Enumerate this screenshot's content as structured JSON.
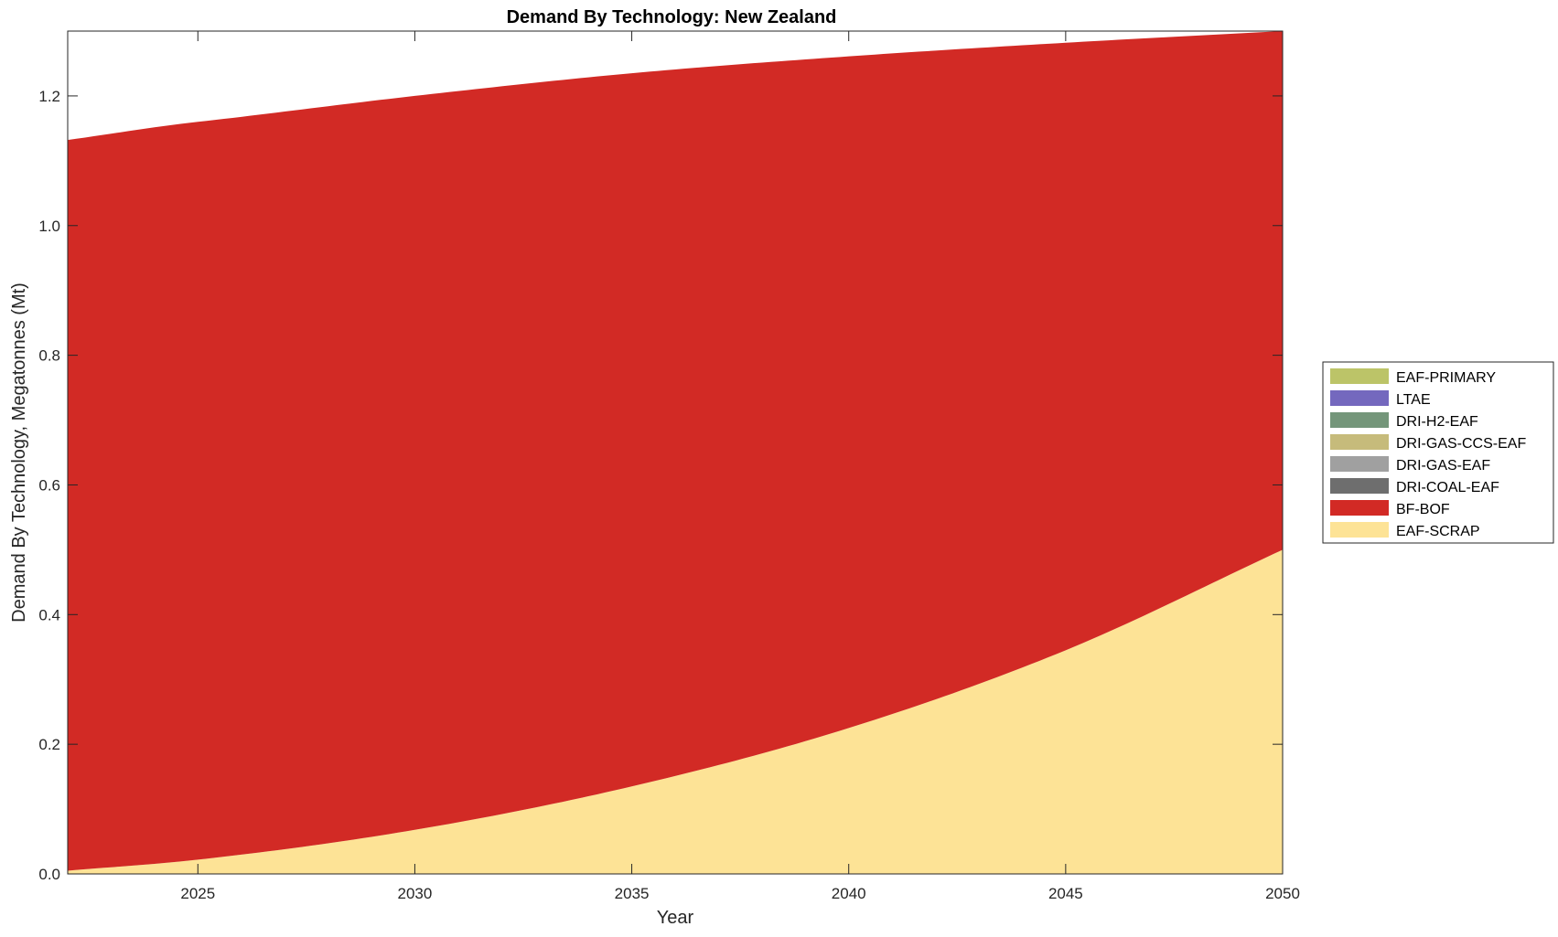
{
  "chart_data": {
    "type": "area",
    "stacked": true,
    "title": "Demand By Technology: New Zealand",
    "xlabel": "Year",
    "ylabel": "Demand By Technology, Megatonnes (Mt)",
    "xlim": [
      2022,
      2050
    ],
    "ylim": [
      0,
      1.3
    ],
    "xticks": [
      2025,
      2030,
      2035,
      2040,
      2045,
      2050
    ],
    "xtick_labels": [
      "2025",
      "2030",
      "2035",
      "2040",
      "2045",
      "2050"
    ],
    "yticks": [
      0,
      0.2,
      0.4,
      0.6,
      0.8,
      1.0,
      1.2
    ],
    "ytick_labels": [
      "0.0",
      "0.2",
      "0.4",
      "0.6",
      "0.8",
      "1.0",
      "1.2"
    ],
    "grid": false,
    "legend_position": "right",
    "x": [
      2022,
      2025,
      2030,
      2035,
      2040,
      2045,
      2050
    ],
    "series": [
      {
        "name": "EAF-SCRAP",
        "color": "#FDE396",
        "values": [
          0.005,
          0.022,
          0.068,
          0.135,
          0.225,
          0.345,
          0.5
        ]
      },
      {
        "name": "BF-BOF",
        "color": "#D22A25",
        "values": [
          1.127,
          1.138,
          1.132,
          1.1,
          1.036,
          0.937,
          0.8
        ]
      },
      {
        "name": "DRI-COAL-EAF",
        "color": "#6E6E6E",
        "values": [
          0,
          0,
          0,
          0,
          0,
          0,
          0
        ]
      },
      {
        "name": "DRI-GAS-EAF",
        "color": "#A0A0A0",
        "values": [
          0,
          0,
          0,
          0,
          0,
          0,
          0
        ]
      },
      {
        "name": "DRI-GAS-CCS-EAF",
        "color": "#C6BB7B",
        "values": [
          0,
          0,
          0,
          0,
          0,
          0,
          0
        ]
      },
      {
        "name": "DRI-H2-EAF",
        "color": "#74967A",
        "values": [
          0,
          0,
          0,
          0,
          0,
          0,
          0
        ]
      },
      {
        "name": "LTAE",
        "color": "#7468BE",
        "values": [
          0,
          0,
          0,
          0,
          0,
          0,
          0
        ]
      },
      {
        "name": "EAF-PRIMARY",
        "color": "#BCC468",
        "values": [
          0,
          0,
          0,
          0,
          0,
          0,
          0
        ]
      }
    ],
    "legend_order": [
      "EAF-PRIMARY",
      "LTAE",
      "DRI-H2-EAF",
      "DRI-GAS-CCS-EAF",
      "DRI-GAS-EAF",
      "DRI-COAL-EAF",
      "BF-BOF",
      "EAF-SCRAP"
    ]
  }
}
